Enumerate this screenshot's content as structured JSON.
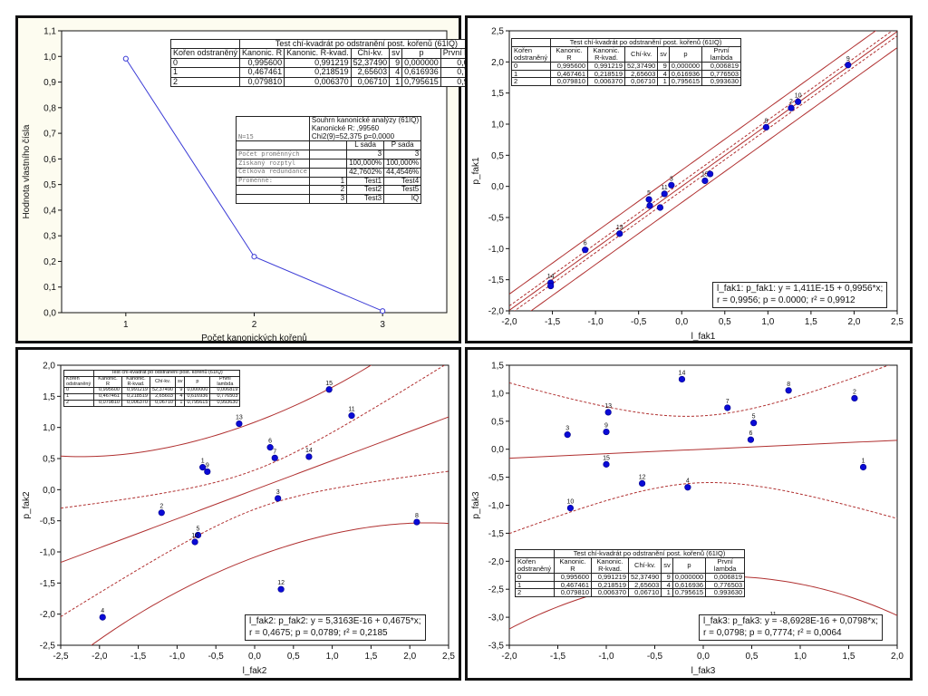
{
  "canon_table": {
    "title": "Test chí-kvadrát po odstranění post. kořenů (61IQ)",
    "headers": [
      "Kořen odstraněný",
      "Kanonic. R",
      "Kanonic. R-kvad.",
      "Chí-kv.",
      "sv",
      "p",
      "První lambda"
    ],
    "rows": [
      [
        "0",
        "0,995600",
        "0,991219",
        "52,37490",
        "9",
        "0,000000",
        "0,006819"
      ],
      [
        "1",
        "0,467461",
        "0,218519",
        "2,65603",
        "4",
        "0,616936",
        "0,776503"
      ],
      [
        "2",
        "0,079810",
        "0,006370",
        "0,06710",
        "1",
        "0,795615",
        "0,993630"
      ]
    ]
  },
  "summary_table": {
    "title_lines": [
      "Souhrn kanonické analýzy (61IQ)",
      "Kanonické R: ,99560",
      "Chi2(9)=52,375 p=0,0000"
    ],
    "n_label": "N=15",
    "col_l": "L sada",
    "col_p": "P sada",
    "rows": [
      {
        "label": "Počet proměnných",
        "idx": "",
        "l": "3",
        "p": "3"
      },
      {
        "label": "Získaný rozptyl",
        "idx": "",
        "l": "100,000%",
        "p": "100,000%"
      },
      {
        "label": "Celková redundance",
        "idx": "",
        "l": "42,7602%",
        "p": "44,4546%"
      },
      {
        "label": "Proměnné:",
        "idx": "1",
        "l": "Test1",
        "p": "Test4"
      },
      {
        "label": "",
        "idx": "2",
        "l": "Test2",
        "p": "Test5"
      },
      {
        "label": "",
        "idx": "3",
        "l": "Test3",
        "p": "IQ"
      }
    ]
  },
  "chart_data": [
    {
      "type": "line",
      "xlabel": "Počet kanonických kořenů",
      "ylabel": "Hodnota vlastního čísla",
      "x": [
        1,
        2,
        3
      ],
      "y": [
        0.9912,
        0.2185,
        0.0064
      ],
      "xlim": [
        0.5,
        3.5
      ],
      "ylim": [
        0.0,
        1.1
      ],
      "xticks": [
        "1",
        "2",
        "3"
      ],
      "yticks": [
        "0,0",
        "0,1",
        "0,2",
        "0,3",
        "0,4",
        "0,5",
        "0,6",
        "0,7",
        "0,8",
        "0,9",
        "1,0",
        "1,1"
      ],
      "color": "#3b3bd6"
    },
    {
      "type": "scatter",
      "xlabel": "l_fak1",
      "ylabel": "p_fak1",
      "xlim": [
        -2.0,
        2.5
      ],
      "ylim": [
        -2.0,
        2.5
      ],
      "xticks": [
        "-2,0",
        "-1,5",
        "-1,0",
        "-0,5",
        "0,0",
        "0,5",
        "1,0",
        "1,5",
        "2,0",
        "2,5"
      ],
      "yticks": [
        "-2,0",
        "-1,5",
        "-1,0",
        "-0,5",
        "0,0",
        "0,5",
        "1,0",
        "1,5",
        "2,0",
        "2,5"
      ],
      "intercept": 0,
      "slope": 0.9956,
      "conf_band": 0.07,
      "pred_band": 0.26,
      "equation": "l_fak1:  p_fak1:   y = 1,411E-15 + 0,9956*x;",
      "stats": "r = 0,9956; p = 0.0000; r² = 0,9912",
      "points": [
        {
          "label": "14",
          "x": -1.52,
          "y": -1.55
        },
        {
          "label": "",
          "x": -1.52,
          "y": -1.6
        },
        {
          "label": "6",
          "x": -1.12,
          "y": -1.02
        },
        {
          "label": "13",
          "x": -0.72,
          "y": -0.76
        },
        {
          "label": "5",
          "x": -0.38,
          "y": -0.21
        },
        {
          "label": "",
          "x": -0.37,
          "y": -0.31
        },
        {
          "label": "",
          "x": -0.25,
          "y": -0.34
        },
        {
          "label": "11",
          "x": -0.2,
          "y": -0.12
        },
        {
          "label": "3",
          "x": -0.12,
          "y": 0.02
        },
        {
          "label": "15",
          "x": 0.27,
          "y": 0.09
        },
        {
          "label": "",
          "x": 0.33,
          "y": 0.2
        },
        {
          "label": "8",
          "x": 0.98,
          "y": 0.95
        },
        {
          "label": "2",
          "x": 1.27,
          "y": 1.26
        },
        {
          "label": "10",
          "x": 1.35,
          "y": 1.36
        },
        {
          "label": "9",
          "x": 1.93,
          "y": 1.95
        }
      ],
      "color": "#0a0ad6",
      "line_color": "#b03030"
    },
    {
      "type": "scatter",
      "xlabel": "l_fak2",
      "ylabel": "p_fak2",
      "xlim": [
        -2.5,
        2.5
      ],
      "ylim": [
        -2.5,
        2.0
      ],
      "xticks": [
        "-2,5",
        "-2,0",
        "-1,5",
        "-1,0",
        "-0,5",
        "0,0",
        "0,5",
        "1,0",
        "1,5",
        "2,0",
        "2,5"
      ],
      "yticks": [
        "-2,5",
        "-2,0",
        "-1,5",
        "-1,0",
        "-0,5",
        "0,0",
        "0,5",
        "1,0",
        "1,5",
        "2,0"
      ],
      "intercept": 0,
      "slope": 0.4675,
      "conf_se": 0.29,
      "pred_se": 1.05,
      "equation": "l_fak2:  p_fak2:   y = 5,3163E-16 + 0,4675*x;",
      "stats": "r = 0,4675; p = 0,0789; r² = 0,2185",
      "points": [
        {
          "label": "4",
          "x": -1.96,
          "y": -2.05
        },
        {
          "label": "2",
          "x": -1.2,
          "y": -0.37
        },
        {
          "label": "1",
          "x": -0.67,
          "y": 0.36
        },
        {
          "label": "9",
          "x": -0.61,
          "y": 0.29
        },
        {
          "label": "5",
          "x": -0.73,
          "y": -0.73
        },
        {
          "label": "10",
          "x": -0.77,
          "y": -0.84
        },
        {
          "label": "13",
          "x": -0.2,
          "y": 1.06
        },
        {
          "label": "6",
          "x": 0.2,
          "y": 0.68
        },
        {
          "label": "7",
          "x": 0.26,
          "y": 0.51
        },
        {
          "label": "3",
          "x": 0.3,
          "y": -0.14
        },
        {
          "label": "12",
          "x": 0.34,
          "y": -1.6
        },
        {
          "label": "14",
          "x": 0.7,
          "y": 0.53
        },
        {
          "label": "15",
          "x": 0.96,
          "y": 1.61
        },
        {
          "label": "11",
          "x": 1.25,
          "y": 1.19
        },
        {
          "label": "8",
          "x": 2.09,
          "y": -0.52
        }
      ],
      "color": "#0a0ad6",
      "line_color": "#b03030"
    },
    {
      "type": "scatter",
      "xlabel": "l_fak3",
      "ylabel": "p_fak3",
      "xlim": [
        -2.0,
        2.0
      ],
      "ylim": [
        -3.5,
        1.5
      ],
      "xticks": [
        "-2,0",
        "-1,5",
        "-1,0",
        "-0,5",
        "0,0",
        "0,5",
        "1,0",
        "1,5",
        "2,0"
      ],
      "yticks": [
        "-3,5",
        "-3,0",
        "-2,5",
        "-2,0",
        "-1,5",
        "-1,0",
        "-0,5",
        "0,0",
        "0,5",
        "1,0",
        "1,5"
      ],
      "intercept": 0,
      "slope": 0.0798,
      "conf_se": 0.55,
      "pred_se": 2.2,
      "equation": "l_fak3:  p_fak3:   y = -8,6928E-16 + 0,0798*x;",
      "stats": "r = 0,0798; p = 0,7774; r² = 0,0064",
      "points": [
        {
          "label": "10",
          "x": -1.37,
          "y": -1.05
        },
        {
          "label": "3",
          "x": -1.4,
          "y": 0.26
        },
        {
          "label": "9",
          "x": -1.0,
          "y": 0.31
        },
        {
          "label": "13",
          "x": -0.98,
          "y": 0.66
        },
        {
          "label": "15",
          "x": -1.0,
          "y": -0.27
        },
        {
          "label": "12",
          "x": -0.63,
          "y": -0.61
        },
        {
          "label": "14",
          "x": -0.22,
          "y": 1.25
        },
        {
          "label": "4",
          "x": -0.16,
          "y": -0.68
        },
        {
          "label": "7",
          "x": 0.25,
          "y": 0.74
        },
        {
          "label": "6",
          "x": 0.49,
          "y": 0.17
        },
        {
          "label": "5",
          "x": 0.52,
          "y": 0.47
        },
        {
          "label": "8",
          "x": 0.88,
          "y": 1.05
        },
        {
          "label": "2",
          "x": 1.56,
          "y": 0.91
        },
        {
          "label": "1",
          "x": 1.65,
          "y": -0.32
        },
        {
          "label": "11",
          "x": 0.72,
          "y": -3.06
        }
      ],
      "color": "#0a0ad6",
      "line_color": "#b03030"
    }
  ],
  "colors": {
    "panel_bg_tl": "#fdfcf0",
    "plot_bg": "#ffffff",
    "axis": "#111111",
    "grid": "none"
  }
}
